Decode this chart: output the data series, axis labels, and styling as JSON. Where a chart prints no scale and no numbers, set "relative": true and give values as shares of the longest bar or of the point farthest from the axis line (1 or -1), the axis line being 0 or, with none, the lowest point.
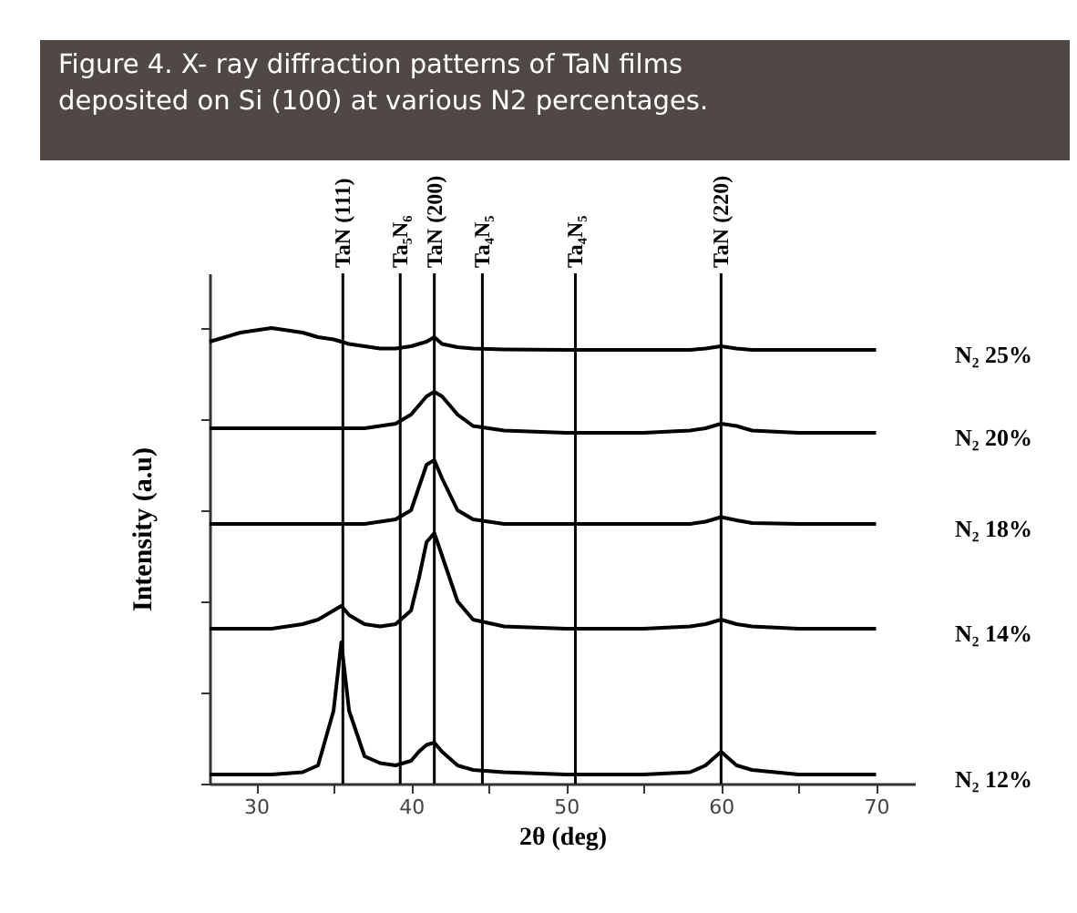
{
  "chart_data": {
    "type": "line",
    "relative": true,
    "title": "Figure 4.  X- ray diffraction patterns of TaN films deposited on Si (100) at various N2 percentages.",
    "xlabel": "2θ (deg)",
    "ylabel": "Intensity (a.u)",
    "xlim": [
      27,
      72.5
    ],
    "xticks": [
      30,
      {
        "value": 35,
        "label": null
      },
      40,
      {
        "value": 45,
        "label": null
      },
      50,
      {
        "value": 55,
        "label": null
      },
      60,
      {
        "value": 65,
        "label": null
      },
      70
    ],
    "x": [
      27,
      29,
      31,
      33,
      34,
      35,
      35.5,
      36,
      37,
      38,
      39,
      40,
      40.5,
      41,
      41.5,
      42,
      43,
      44,
      46,
      50,
      55,
      58,
      59,
      60,
      61,
      62,
      65,
      70
    ],
    "series": [
      {
        "name": "N₂ 12%",
        "color": "#000000",
        "values": [
          0.02,
          0.02,
          0.02,
          0.025,
          0.04,
          0.16,
          0.31,
          0.16,
          0.06,
          0.045,
          0.04,
          0.05,
          0.07,
          0.085,
          0.09,
          0.07,
          0.04,
          0.03,
          0.025,
          0.02,
          0.02,
          0.025,
          0.04,
          0.07,
          0.04,
          0.03,
          0.02,
          0.02
        ]
      },
      {
        "name": "N₂ 14%",
        "color": "#000000",
        "values": [
          0.34,
          0.34,
          0.34,
          0.35,
          0.36,
          0.38,
          0.39,
          0.37,
          0.35,
          0.345,
          0.35,
          0.38,
          0.45,
          0.53,
          0.55,
          0.5,
          0.4,
          0.36,
          0.345,
          0.34,
          0.34,
          0.345,
          0.35,
          0.36,
          0.35,
          0.345,
          0.34,
          0.34
        ]
      },
      {
        "name": "N₂ 18%",
        "color": "#000000",
        "values": [
          0.57,
          0.57,
          0.57,
          0.57,
          0.57,
          0.57,
          0.57,
          0.57,
          0.57,
          0.575,
          0.58,
          0.6,
          0.65,
          0.7,
          0.71,
          0.67,
          0.6,
          0.58,
          0.57,
          0.57,
          0.57,
          0.57,
          0.575,
          0.585,
          0.578,
          0.572,
          0.57,
          0.57
        ]
      },
      {
        "name": "N₂ 20%",
        "color": "#000000",
        "values": [
          0.78,
          0.78,
          0.78,
          0.78,
          0.78,
          0.78,
          0.78,
          0.78,
          0.78,
          0.785,
          0.79,
          0.81,
          0.83,
          0.85,
          0.86,
          0.85,
          0.81,
          0.785,
          0.775,
          0.77,
          0.77,
          0.775,
          0.78,
          0.79,
          0.785,
          0.775,
          0.77,
          0.77
        ]
      },
      {
        "name": "N₂ 25%",
        "color": "#000000",
        "values": [
          0.97,
          0.99,
          1.0,
          0.99,
          0.98,
          0.975,
          0.97,
          0.965,
          0.96,
          0.955,
          0.955,
          0.96,
          0.965,
          0.97,
          0.98,
          0.965,
          0.958,
          0.955,
          0.953,
          0.952,
          0.952,
          0.952,
          0.955,
          0.96,
          0.955,
          0.952,
          0.952,
          0.952
        ]
      }
    ],
    "ref_lines": [
      {
        "axis": "x",
        "value": 35.6,
        "label": "TaN (111)",
        "color": "#000000"
      },
      {
        "axis": "x",
        "value": 39.3,
        "label": "Ta₅N₆",
        "color": "#000000"
      },
      {
        "axis": "x",
        "value": 41.5,
        "label": "TaN (200)",
        "color": "#000000"
      },
      {
        "axis": "x",
        "value": 44.6,
        "label": "Ta₄N₅",
        "color": "#000000"
      },
      {
        "axis": "x",
        "value": 50.6,
        "label": "Ta₄N₅",
        "color": "#000000"
      },
      {
        "axis": "x",
        "value": 60.0,
        "label": "TaN (220)",
        "color": "#000000"
      }
    ],
    "line_style": "solid",
    "marker": "none",
    "grid": false
  }
}
